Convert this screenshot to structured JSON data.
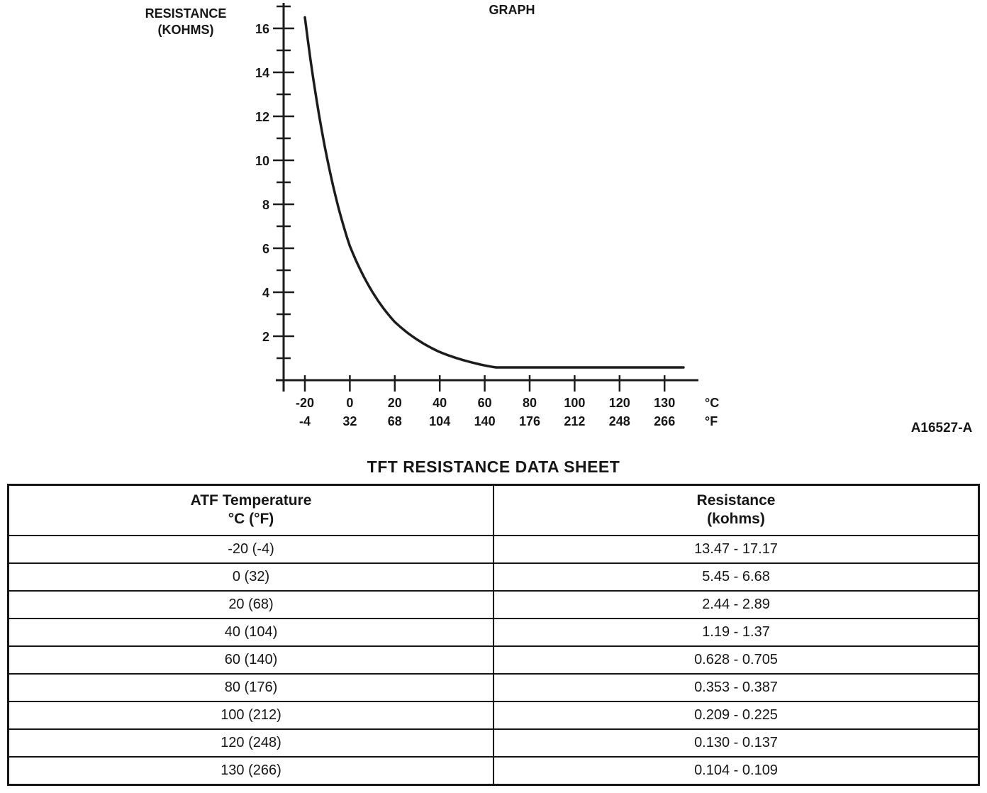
{
  "graph": {
    "title": "GRAPH",
    "y_axis_title": [
      "RESISTANCE",
      "(KOHMS)"
    ],
    "celsius_unit": "°C",
    "fahrenheit_unit": "°F",
    "figure_ref": "A16527-A"
  },
  "chart_data": {
    "type": "line",
    "title": "GRAPH",
    "ylabel": "RESISTANCE (KOHMS)",
    "x_axis_units": [
      "°C",
      "°F"
    ],
    "x_celsius": [
      -20,
      0,
      20,
      40,
      60,
      80,
      100,
      120,
      130
    ],
    "x_fahrenheit": [
      -4,
      32,
      68,
      104,
      140,
      176,
      212,
      248,
      266
    ],
    "y_resistance_kohms": [
      16.5,
      6.1,
      2.65,
      1.28,
      0.67,
      0.37,
      0.22,
      0.13,
      0.11
    ],
    "ylim": [
      0,
      17
    ],
    "y_ticks": [
      2,
      4,
      6,
      8,
      10,
      12,
      14,
      16
    ],
    "grid": false,
    "legend": false
  },
  "table": {
    "title": "TFT RESISTANCE DATA SHEET",
    "columns": [
      {
        "line1": "ATF Temperature",
        "line2": "°C (°F)"
      },
      {
        "line1": "Resistance",
        "line2": "(kohms)"
      }
    ],
    "rows": [
      {
        "temperature": "-20 (-4)",
        "resistance": "13.47 - 17.17"
      },
      {
        "temperature": "0 (32)",
        "resistance": "5.45 - 6.68"
      },
      {
        "temperature": "20 (68)",
        "resistance": "2.44 - 2.89"
      },
      {
        "temperature": "40 (104)",
        "resistance": "1.19 - 1.37"
      },
      {
        "temperature": "60 (140)",
        "resistance": "0.628 - 0.705"
      },
      {
        "temperature": "80 (176)",
        "resistance": "0.353 - 0.387"
      },
      {
        "temperature": "100 (212)",
        "resistance": "0.209 - 0.225"
      },
      {
        "temperature": "120 (248)",
        "resistance": "0.130 - 0.137"
      },
      {
        "temperature": "130 (266)",
        "resistance": "0.104 - 0.109"
      }
    ]
  }
}
